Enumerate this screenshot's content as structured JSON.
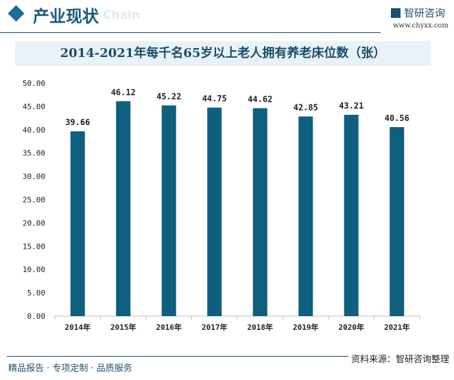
{
  "header": {
    "title": "产业现状",
    "watermark": "Chain",
    "logo": "智研咨询",
    "url": "www.chyxx.com"
  },
  "footer": {
    "left": "精品报告 · 专项定制 · 品质服务",
    "source": "资料来源：智研咨询整理"
  },
  "colors": {
    "bar": "#0f5f7f",
    "accent": "#1b4d68"
  },
  "chart_data": {
    "type": "bar",
    "title": "2014-2021年每千名65岁以上老人拥有养老床位数（张）",
    "categories": [
      "2014年",
      "2015年",
      "2016年",
      "2017年",
      "2018年",
      "2019年",
      "2020年",
      "2021年"
    ],
    "values": [
      39.66,
      46.12,
      45.22,
      44.75,
      44.62,
      42.85,
      43.21,
      40.56
    ],
    "data_labels": [
      "39.66",
      "46.12",
      "45.22",
      "44.75",
      "44.62",
      "42.85",
      "43.21",
      "40.56"
    ],
    "ylim": [
      0,
      50
    ],
    "yticks": [
      "0.00",
      "5.00",
      "10.00",
      "15.00",
      "20.00",
      "25.00",
      "30.00",
      "35.00",
      "40.00",
      "45.00",
      "50.00"
    ],
    "grid": false,
    "legend": "none"
  }
}
